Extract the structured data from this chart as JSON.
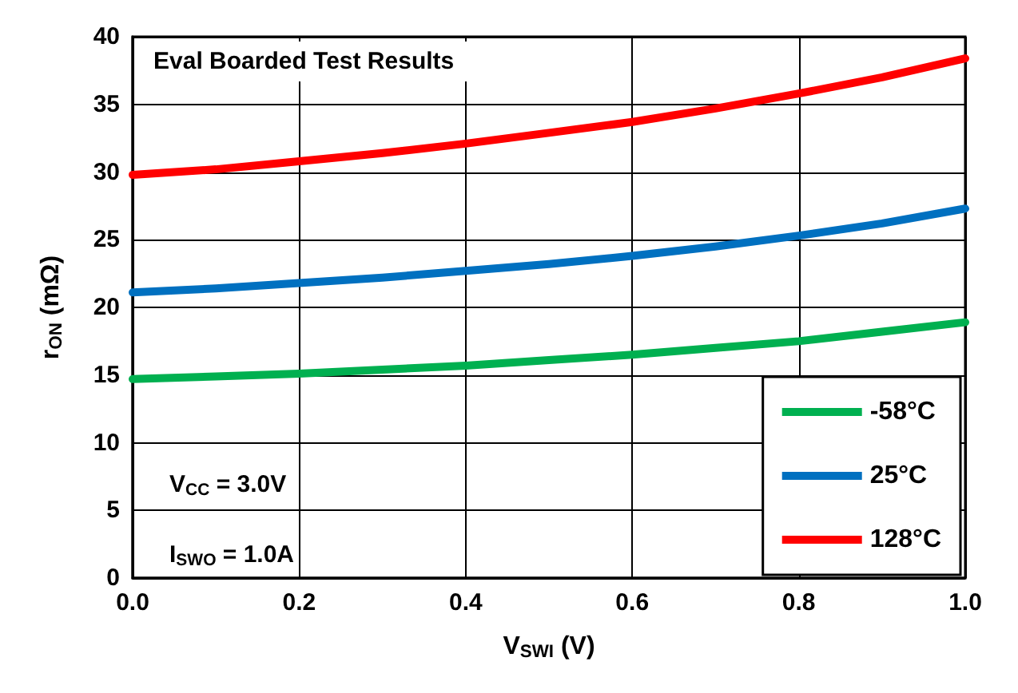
{
  "chart_data": {
    "type": "line",
    "title": "Eval Boarded Test Results",
    "xlabel": "V$_{SWI}$ (V)",
    "ylabel": "r$_{ON}$ (mΩ)",
    "annotations": [
      "V$_{CC}$ = 3.0V",
      "I$_{SWO}$ = 1.0A"
    ],
    "x": [
      0,
      0.1,
      0.2,
      0.3,
      0.4,
      0.5,
      0.6,
      0.7,
      0.8,
      0.9,
      1.0
    ],
    "series": [
      {
        "name": "-58°C",
        "color": "#00b050",
        "values": [
          14.7,
          14.9,
          15.1,
          15.4,
          15.7,
          16.1,
          16.5,
          17.0,
          17.5,
          18.2,
          18.9
        ]
      },
      {
        "name": "25°C",
        "color": "#0070c0",
        "values": [
          21.1,
          21.4,
          21.8,
          22.2,
          22.7,
          23.2,
          23.8,
          24.5,
          25.3,
          26.2,
          27.3
        ]
      },
      {
        "name": "128°C",
        "color": "#ff0000",
        "values": [
          29.8,
          30.2,
          30.8,
          31.4,
          32.1,
          32.9,
          33.7,
          34.7,
          35.8,
          37.0,
          38.4
        ]
      }
    ],
    "xlim": [
      0,
      1.0
    ],
    "ylim": [
      0,
      40
    ],
    "xticks": [
      {
        "value": 0,
        "label": "0.0"
      },
      0.2,
      0.4,
      0.6,
      0.8,
      {
        "value": 1.0,
        "label": "1.0"
      }
    ],
    "yticks": [
      0,
      5,
      10,
      15,
      20,
      25,
      30,
      35,
      40
    ],
    "grid": true,
    "legend": "bottom right"
  }
}
